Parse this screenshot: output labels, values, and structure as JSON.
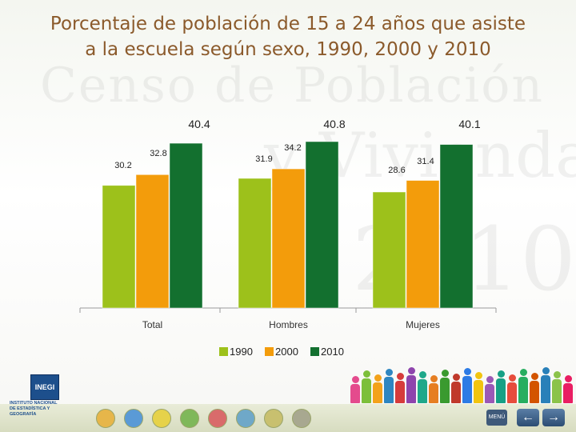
{
  "title": "Porcentaje de población de 15 a 24 años que asiste a la escuela según sexo, 1990, 2000 y 2010",
  "title_line1": "Porcentaje de población de 15 a 24 años que asiste",
  "title_line2": "a la escuela según sexo, 1990, 2000 y 2010",
  "watermark": "Censo de Población",
  "watermark2": "y Vivienda",
  "watermark3": "2010",
  "chart_data": {
    "type": "bar",
    "categories": [
      "Total",
      "Hombres",
      "Mujeres"
    ],
    "series": [
      {
        "name": "1990",
        "values": [
          30.2,
          31.9,
          28.6
        ],
        "color": "#9dc11b"
      },
      {
        "name": "2000",
        "values": [
          32.8,
          34.2,
          31.4
        ],
        "color": "#f39c0b"
      },
      {
        "name": "2010",
        "values": [
          40.4,
          40.8,
          40.1
        ],
        "color": "#13702f"
      }
    ],
    "ylim": [
      0,
      42
    ],
    "legend_position": "bottom",
    "grid": false,
    "title": "",
    "xlabel": "",
    "ylabel": ""
  },
  "logo": {
    "name": "INEGI",
    "line1": "INSTITUTO NACIONAL",
    "line2": "DE ESTADÍSTICA Y GEOGRAFÍA"
  },
  "nav": {
    "menu_label": "MENÚ",
    "back_icon": "left-arrow-icon",
    "forward_icon": "right-arrow-icon"
  },
  "colors": {
    "title": "#8b5a2b",
    "axis": "#8c8c8c"
  }
}
